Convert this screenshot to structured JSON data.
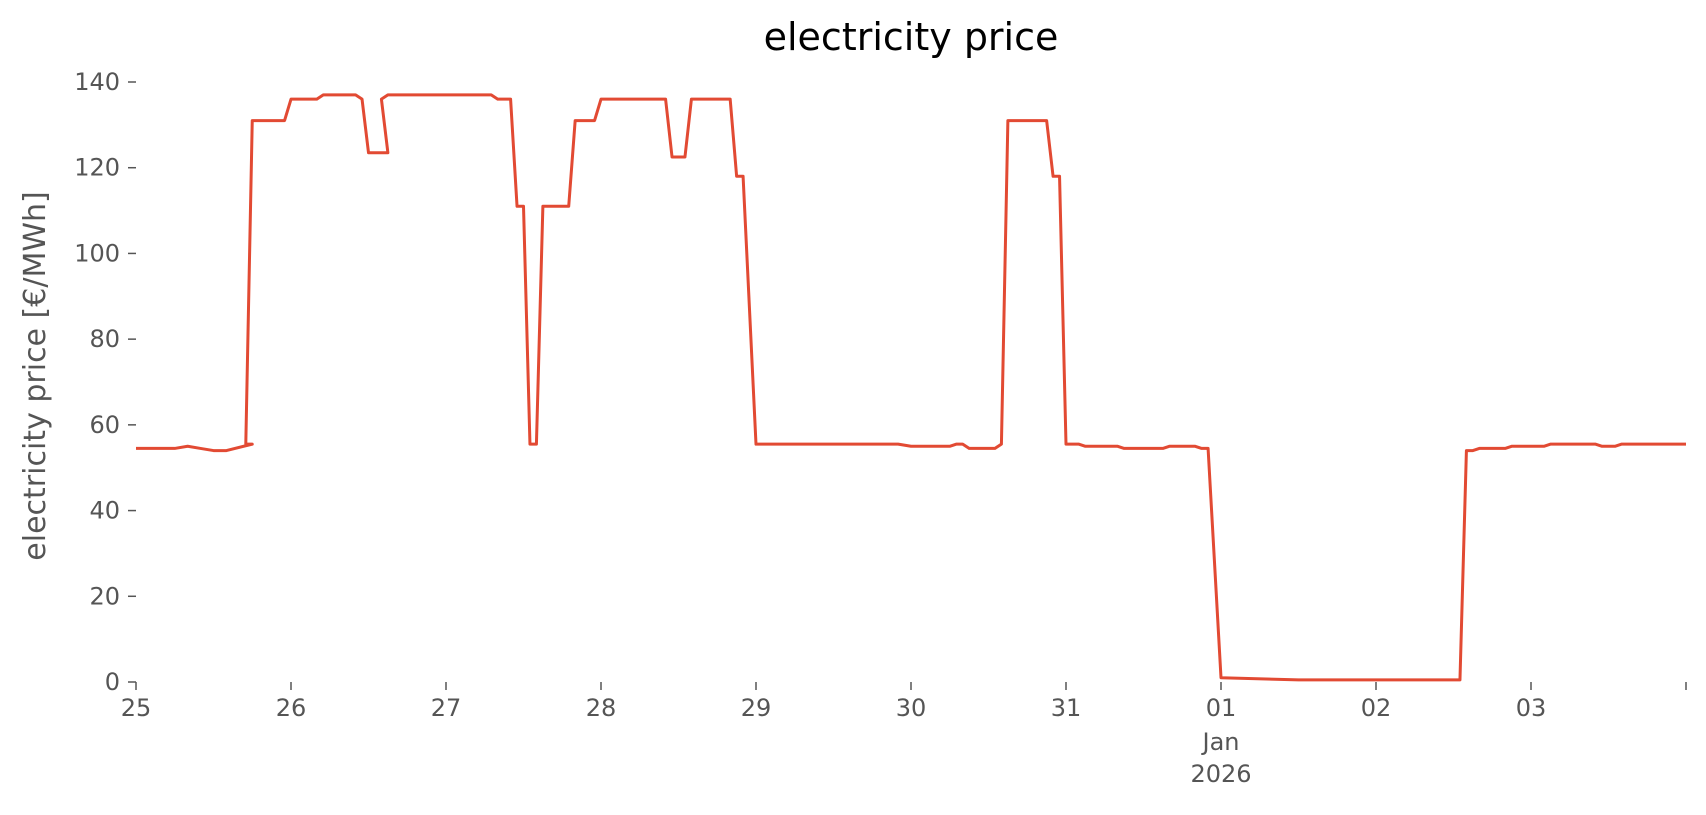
{
  "chart_data": {
    "type": "line",
    "title": "electricity price",
    "xlabel": "",
    "ylabel": "electricity price [€/MWh]",
    "ylim": [
      0,
      150
    ],
    "xlim": [
      "2025-12-25T00:00",
      "2026-01-04T00:00"
    ],
    "grid": false,
    "legend": "none",
    "y_ticks": [
      0,
      20,
      40,
      60,
      80,
      100,
      120,
      140
    ],
    "x_ticks": [
      {
        "date": "2025-12-25T00:00",
        "label": "25"
      },
      {
        "date": "2025-12-26T00:00",
        "label": "26"
      },
      {
        "date": "2025-12-27T00:00",
        "label": "27"
      },
      {
        "date": "2025-12-28T00:00",
        "label": "28"
      },
      {
        "date": "2025-12-29T00:00",
        "label": "29"
      },
      {
        "date": "2025-12-30T00:00",
        "label": "30"
      },
      {
        "date": "2025-12-31T00:00",
        "label": "31"
      },
      {
        "date": "2026-01-01T00:00",
        "label": "01",
        "sublabel": "Jan",
        "sublabel2": "2026"
      },
      {
        "date": "2026-01-02T00:00",
        "label": "02"
      },
      {
        "date": "2026-01-03T00:00",
        "label": "03"
      },
      {
        "date": "2026-01-04T00:00",
        "label": ""
      }
    ],
    "series": [
      {
        "color": "#e24a33",
        "points": [
          [
            "2025-12-25T00:00",
            54.5
          ],
          [
            "2025-12-25T06:00",
            54.5
          ],
          [
            "2025-12-25T08:00",
            55
          ],
          [
            "2025-12-25T10:00",
            54.5
          ],
          [
            "2025-12-25T12:00",
            54
          ],
          [
            "2025-12-25T14:00",
            54
          ],
          [
            "2025-12-25T18:00",
            55.5
          ],
          [
            "2025-12-25T17:00",
            55.5
          ],
          [
            "2025-12-25T18:00",
            131
          ],
          [
            "2025-12-25T23:00",
            131
          ],
          [
            "2025-12-26T00:00",
            136
          ],
          [
            "2025-12-26T04:00",
            136
          ],
          [
            "2025-12-26T05:00",
            137
          ],
          [
            "2025-12-26T10:00",
            137
          ],
          [
            "2025-12-26T11:00",
            136
          ],
          [
            "2025-12-26T12:00",
            123.5
          ],
          [
            "2025-12-26T15:00",
            123.5
          ],
          [
            "2025-12-26T14:00",
            136
          ],
          [
            "2025-12-26T15:00",
            137
          ],
          [
            "2025-12-27T07:00",
            137
          ],
          [
            "2025-12-27T08:00",
            136
          ],
          [
            "2025-12-27T10:00",
            136
          ],
          [
            "2025-12-27T11:00",
            111
          ],
          [
            "2025-12-27T12:00",
            111
          ],
          [
            "2025-12-27T13:00",
            55.5
          ],
          [
            "2025-12-27T14:00",
            55.5
          ],
          [
            "2025-12-27T15:00",
            111
          ],
          [
            "2025-12-27T19:00",
            111
          ],
          [
            "2025-12-27T20:00",
            131
          ],
          [
            "2025-12-27T23:00",
            131
          ],
          [
            "2025-12-28T00:00",
            136
          ],
          [
            "2025-12-28T06:00",
            136
          ],
          [
            "2025-12-28T10:00",
            136
          ],
          [
            "2025-12-28T11:00",
            122.5
          ],
          [
            "2025-12-28T13:00",
            122.5
          ],
          [
            "2025-12-28T14:00",
            136
          ],
          [
            "2025-12-28T20:00",
            136
          ],
          [
            "2025-12-28T21:00",
            118
          ],
          [
            "2025-12-28T22:00",
            118
          ],
          [
            "2025-12-29T00:00",
            55.5
          ],
          [
            "2025-12-29T12:00",
            55.5
          ],
          [
            "2025-12-29T22:00",
            55.5
          ],
          [
            "2025-12-30T00:00",
            55
          ],
          [
            "2025-12-30T06:00",
            55
          ],
          [
            "2025-12-30T07:00",
            55.5
          ],
          [
            "2025-12-30T08:00",
            55.5
          ],
          [
            "2025-12-30T09:00",
            54.5
          ],
          [
            "2025-12-30T13:00",
            54.5
          ],
          [
            "2025-12-30T14:00",
            55.5
          ],
          [
            "2025-12-30T15:00",
            131
          ],
          [
            "2025-12-30T21:00",
            131
          ],
          [
            "2025-12-30T22:00",
            118
          ],
          [
            "2025-12-30T23:00",
            118
          ],
          [
            "2025-12-31T00:00",
            55.5
          ],
          [
            "2025-12-31T02:00",
            55.5
          ],
          [
            "2025-12-31T03:00",
            55
          ],
          [
            "2025-12-31T08:00",
            55
          ],
          [
            "2025-12-31T09:00",
            54.5
          ],
          [
            "2025-12-31T15:00",
            54.5
          ],
          [
            "2025-12-31T16:00",
            55
          ],
          [
            "2025-12-31T20:00",
            55
          ],
          [
            "2025-12-31T21:00",
            54.5
          ],
          [
            "2025-12-31T22:00",
            54.5
          ],
          [
            "2026-01-01T00:00",
            1
          ],
          [
            "2026-01-01T12:00",
            0.5
          ],
          [
            "2026-01-02T00:00",
            0.5
          ],
          [
            "2026-01-02T12:00",
            0.5
          ],
          [
            "2026-01-02T13:00",
            0.5
          ],
          [
            "2026-01-02T14:00",
            54
          ],
          [
            "2026-01-02T15:00",
            54
          ],
          [
            "2026-01-02T16:00",
            54.5
          ],
          [
            "2026-01-02T20:00",
            54.5
          ],
          [
            "2026-01-02T21:00",
            55
          ],
          [
            "2026-01-03T02:00",
            55
          ],
          [
            "2026-01-03T03:00",
            55.5
          ],
          [
            "2026-01-03T08:00",
            55.5
          ],
          [
            "2026-01-03T10:00",
            55.5
          ],
          [
            "2026-01-03T11:00",
            55
          ],
          [
            "2026-01-03T13:00",
            55
          ],
          [
            "2026-01-03T14:00",
            55.5
          ],
          [
            "2026-01-04T00:00",
            55.5
          ]
        ]
      }
    ]
  }
}
